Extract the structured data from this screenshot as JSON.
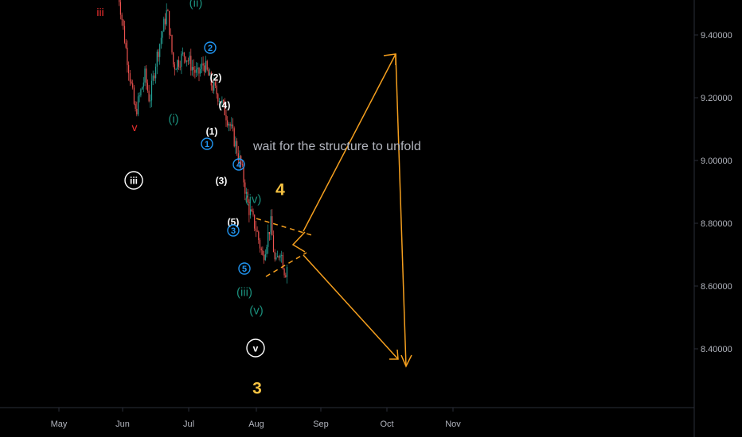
{
  "chart_data": {
    "type": "candlestick",
    "title": "",
    "xlabel": "",
    "ylabel": "",
    "x_ticks": [
      "May",
      "Jun",
      "Jul",
      "Aug",
      "Sep",
      "Oct",
      "Nov"
    ],
    "y_ticks": [
      "9.40000",
      "9.20000",
      "9.00000",
      "8.80000",
      "8.60000",
      "8.40000"
    ],
    "ylim": [
      8.22,
      9.52
    ],
    "grid": false,
    "colors": {
      "up": "#26a69a",
      "down": "#ef5350",
      "projection": "#f59f1e",
      "axis_text": "#b2b5be"
    },
    "price_path": [
      [
        "Jun",
        9.55
      ],
      [
        "Jun",
        9.36
      ],
      [
        "Jun",
        9.15
      ],
      [
        "Jun",
        9.27
      ],
      [
        "Jun",
        9.19
      ],
      [
        "Jul",
        9.32
      ],
      [
        "Jul",
        9.48
      ],
      [
        "Jul",
        9.3
      ],
      [
        "Jul",
        9.34
      ],
      [
        "Jul",
        9.27
      ],
      [
        "Jul",
        9.31
      ],
      [
        "Jul",
        9.24
      ],
      [
        "Jul",
        9.2
      ],
      [
        "Jul",
        9.12
      ],
      [
        "Jul",
        9.05
      ],
      [
        "Aug",
        8.97
      ],
      [
        "Aug",
        8.85
      ],
      [
        "Aug",
        8.78
      ],
      [
        "Aug",
        8.69
      ],
      [
        "Aug",
        8.8
      ],
      [
        "Aug",
        8.66
      ],
      [
        "Aug",
        8.72
      ],
      [
        "Aug",
        8.64
      ],
      [
        "Aug",
        8.68
      ]
    ],
    "wave_labels": [
      {
        "text": "iii",
        "style": "plain-red"
      },
      {
        "text": "(ii)",
        "style": "plain-teal"
      },
      {
        "text": "v",
        "style": "plain-red"
      },
      {
        "text": "(i)",
        "style": "plain-teal"
      },
      {
        "text": "2",
        "style": "circle-blue"
      },
      {
        "text": "(2)",
        "style": "plain-white"
      },
      {
        "text": "(4)",
        "style": "plain-white"
      },
      {
        "text": "(1)",
        "style": "plain-white"
      },
      {
        "text": "1",
        "style": "circle-blue"
      },
      {
        "text": "iii",
        "style": "circle-white"
      },
      {
        "text": "(3)",
        "style": "plain-white"
      },
      {
        "text": "4",
        "style": "circle-blue"
      },
      {
        "text": "(iv)",
        "style": "plain-teal"
      },
      {
        "text": "(5)",
        "style": "plain-white"
      },
      {
        "text": "3",
        "style": "circle-blue"
      },
      {
        "text": "5",
        "style": "circle-blue"
      },
      {
        "text": "(iii)",
        "style": "plain-teal"
      },
      {
        "text": "(v)",
        "style": "plain-teal"
      },
      {
        "text": "v",
        "style": "circle-white"
      },
      {
        "text": "4",
        "style": "plain-orange"
      },
      {
        "text": "3",
        "style": "plain-orange"
      }
    ],
    "annotations": [
      {
        "text": "wait for the structure to unfold"
      }
    ]
  }
}
